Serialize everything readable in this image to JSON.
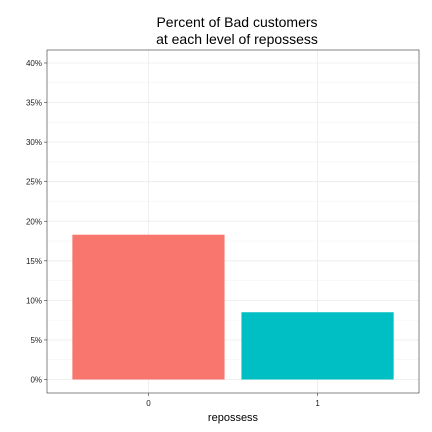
{
  "chart_data": {
    "type": "bar",
    "title": "Percent of Bad customers\nat each level of repossess",
    "title_lines": [
      "Percent of Bad customers",
      "at each level of repossess"
    ],
    "xlabel": "repossess",
    "ylabel": "",
    "categories": [
      "0",
      "1"
    ],
    "values": [
      18.3,
      8.5
    ],
    "ylim": [
      0,
      41
    ],
    "yticks": [
      0,
      5,
      10,
      15,
      20,
      25,
      30,
      35,
      40
    ],
    "ytick_labels": [
      "0%",
      "5%",
      "10%",
      "15%",
      "20%",
      "25%",
      "30%",
      "35%",
      "40%"
    ],
    "bar_colors": [
      "#F8766D",
      "#00BFC4"
    ],
    "grid": true,
    "legend": "none"
  }
}
